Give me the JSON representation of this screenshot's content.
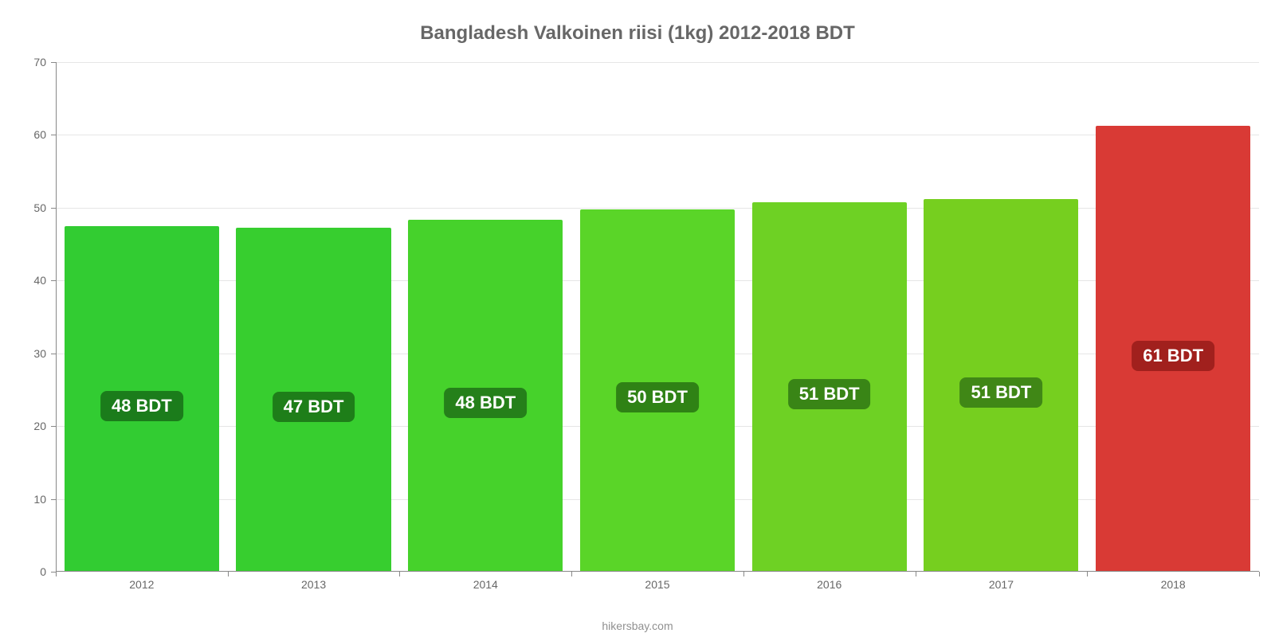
{
  "chart": {
    "type": "bar",
    "title": "Bangladesh Valkoinen riisi (1kg) 2012-2018 BDT",
    "title_fontsize": 24,
    "title_color": "#676767",
    "background_color": "#ffffff",
    "grid_color": "#e6e6e6",
    "axis_color": "#888888",
    "tick_label_color": "#676767",
    "tick_label_fontsize": 14,
    "attribution": "hikersbay.com",
    "attribution_color": "#909090",
    "y_axis": {
      "min": 0,
      "max": 70,
      "ticks": [
        0,
        10,
        20,
        30,
        40,
        50,
        60,
        70
      ]
    },
    "bars": [
      {
        "category": "2012",
        "value": 47.5,
        "label": "48 BDT",
        "bar_color": "#32cc32",
        "badge_bg": "#1b7c1b"
      },
      {
        "category": "2013",
        "value": 47.3,
        "label": "47 BDT",
        "bar_color": "#37ce2f",
        "badge_bg": "#1e7e19"
      },
      {
        "category": "2014",
        "value": 48.4,
        "label": "48 BDT",
        "bar_color": "#46d22b",
        "badge_bg": "#25801a"
      },
      {
        "category": "2015",
        "value": 49.8,
        "label": "50 BDT",
        "bar_color": "#5ad528",
        "badge_bg": "#2f8215"
      },
      {
        "category": "2016",
        "value": 50.7,
        "label": "51 BDT",
        "bar_color": "#6ed124",
        "badge_bg": "#398516"
      },
      {
        "category": "2017",
        "value": 51.2,
        "label": "51 BDT",
        "bar_color": "#76cf1f",
        "badge_bg": "#408716"
      },
      {
        "category": "2018",
        "value": 61.2,
        "label": "61 BDT",
        "bar_color": "#d93a35",
        "badge_bg": "#a1201d"
      }
    ],
    "bar_width_pct": 90,
    "badge_fontsize": 22,
    "badge_text_color": "#ffffff"
  }
}
